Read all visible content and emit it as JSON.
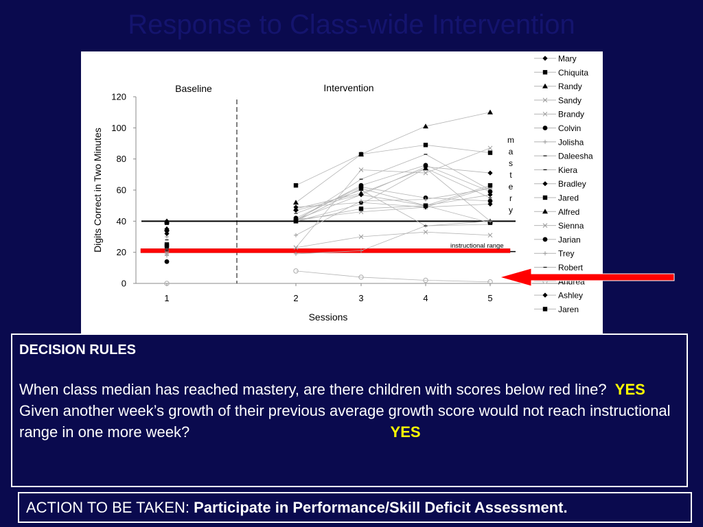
{
  "slide": {
    "title": "Response to Class-wide Intervention"
  },
  "chart_data": {
    "type": "scatter",
    "title": "",
    "xlabel": "Sessions",
    "ylabel": "Digits Correct in Two Minutes",
    "ylim": [
      0,
      120
    ],
    "yticks": [
      0,
      20,
      40,
      60,
      80,
      100,
      120
    ],
    "xticks": [
      1,
      2,
      3,
      4,
      5
    ],
    "grid": false,
    "legend_position": "right",
    "phase_labels": [
      "Baseline",
      "Intervention"
    ],
    "mastery_label": "mastery",
    "instructional_label": "instructional range",
    "mastery_line": 40,
    "instructional_line": 20,
    "red_line": 21,
    "series": [
      {
        "name": "Mary",
        "marker": "diamond",
        "values": [
          35,
          49,
          52,
          49,
          51
        ]
      },
      {
        "name": "Chiquita",
        "marker": "square",
        "values": [
          25,
          63,
          83,
          89,
          84
        ]
      },
      {
        "name": "Randy",
        "marker": "triangle",
        "values": [
          35,
          52,
          83,
          101,
          110
        ]
      },
      {
        "name": "Sandy",
        "marker": "x",
        "values": [
          20,
          23,
          73,
          71,
          87
        ]
      },
      {
        "name": "Brandy",
        "marker": "x",
        "values": [
          22,
          41,
          46,
          49,
          62
        ]
      },
      {
        "name": "Colvin",
        "marker": "circle",
        "values": [
          34,
          42,
          62,
          55,
          53
        ]
      },
      {
        "name": "Jolisha",
        "marker": "plus",
        "values": [
          30,
          31,
          53,
          54,
          61
        ]
      },
      {
        "name": "Daleesha",
        "marker": "dash",
        "values": [
          28,
          40,
          67,
          83,
          60
        ]
      },
      {
        "name": "Kiera",
        "marker": "dash",
        "values": [
          22,
          40,
          51,
          74,
          55
        ]
      },
      {
        "name": "Bradley",
        "marker": "diamond",
        "values": [
          40,
          47,
          57,
          75,
          71
        ]
      },
      {
        "name": "Jared",
        "marker": "square",
        "values": [
          39,
          40,
          48,
          50,
          39
        ]
      },
      {
        "name": "Alfred",
        "marker": "triangle",
        "values": [
          40,
          48,
          58,
          74,
          40
        ]
      },
      {
        "name": "Sienna",
        "marker": "x",
        "values": [
          19,
          23,
          30,
          33,
          31
        ]
      },
      {
        "name": "Jarian",
        "marker": "circle",
        "values": [
          14,
          41,
          63,
          76,
          59
        ]
      },
      {
        "name": "Trey",
        "marker": "plus",
        "values": [
          18,
          19,
          21,
          37,
          40
        ]
      },
      {
        "name": "Robert",
        "marker": "dash",
        "values": [
          21,
          45,
          60,
          37,
          38
        ]
      },
      {
        "name": "Andrea",
        "marker": "circle-open",
        "values": [
          0,
          8,
          4,
          2,
          1
        ]
      },
      {
        "name": "Ashley",
        "marker": "diamond",
        "values": [
          32,
          41,
          57,
          50,
          57
        ]
      },
      {
        "name": "Jaren",
        "marker": "square",
        "values": [
          24,
          40,
          61,
          50,
          63
        ]
      }
    ]
  },
  "decision": {
    "heading": "DECISION RULES",
    "q1": "When class median has reached mastery, are there children with scores below red line?",
    "a1": "YES",
    "q2": "Given another week’s growth of their previous average growth score would not reach instructional range in one more week?",
    "a2": "YES"
  },
  "action": {
    "label": "ACTION TO BE TAKEN:",
    "value": "Participate in Performance/Skill Deficit Assessment."
  }
}
